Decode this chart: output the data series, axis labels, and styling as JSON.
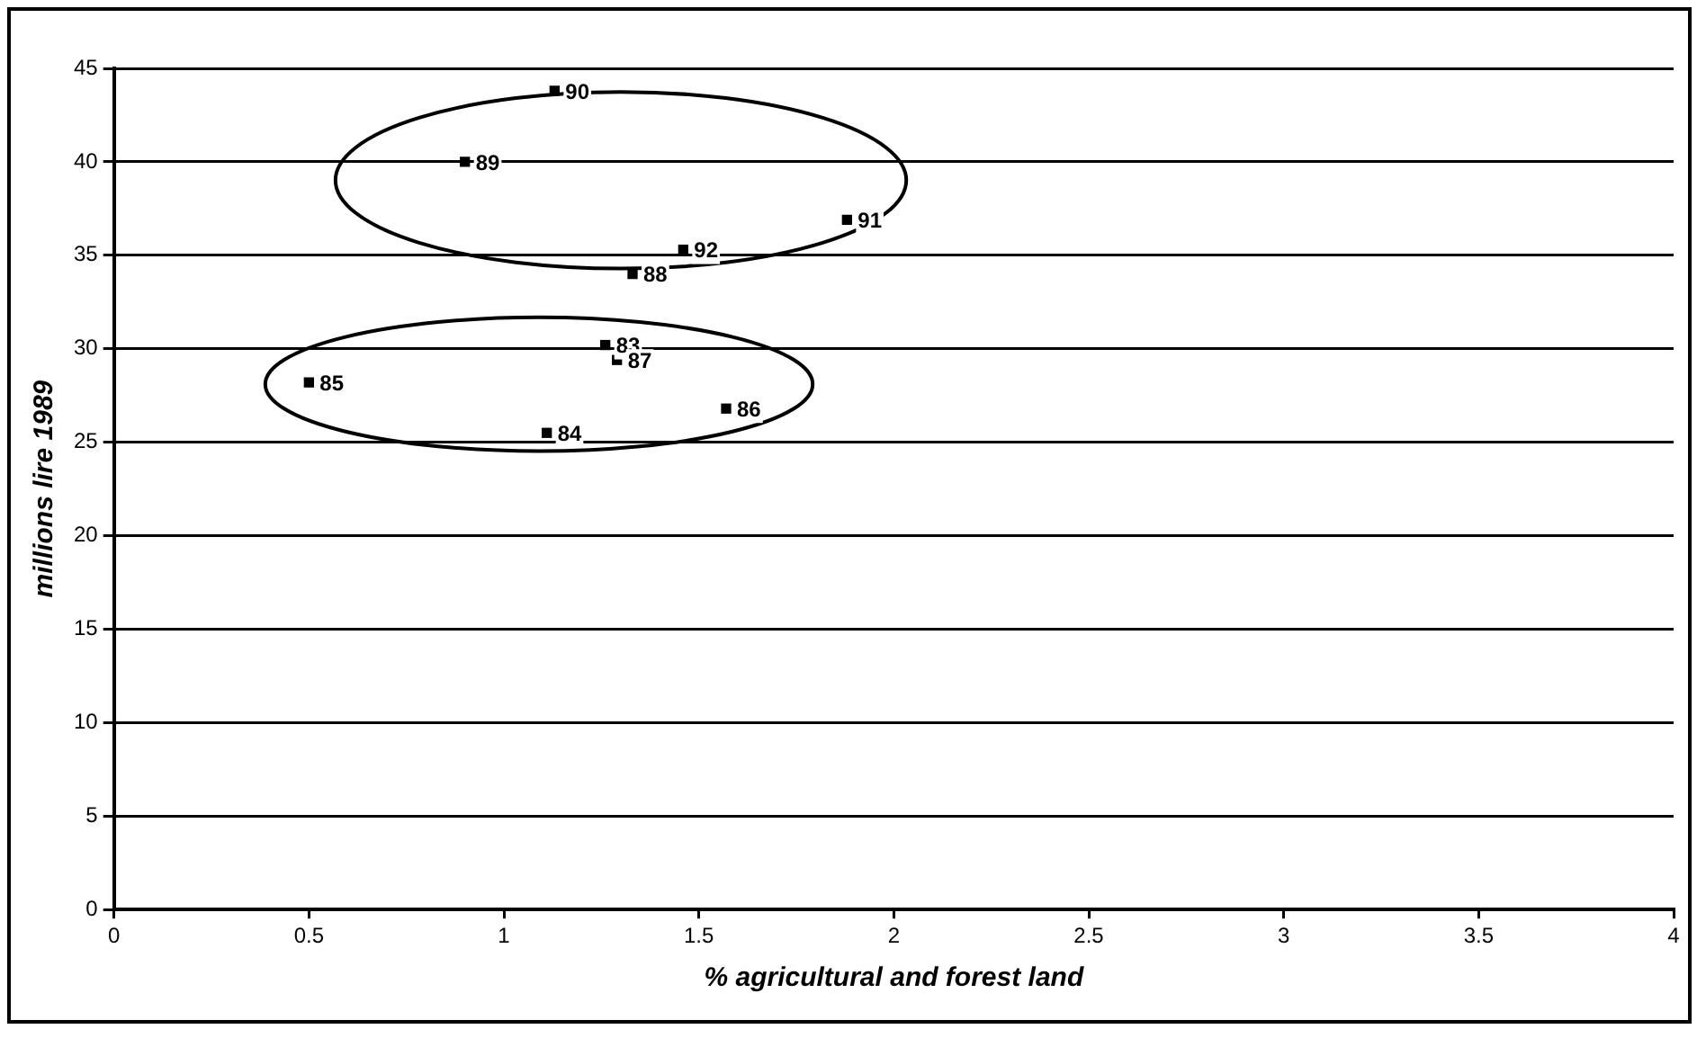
{
  "chart_data": {
    "type": "scatter",
    "xlabel": "% agricultural and forest land",
    "ylabel": "millions lire 1989",
    "x": [
      1.13,
      0.9,
      1.88,
      1.46,
      1.33,
      1.26,
      1.29,
      0.5,
      1.57,
      1.11
    ],
    "series": [
      {
        "color": "#000000",
        "values": [
          43.8,
          40.0,
          36.9,
          35.3,
          34.0,
          30.2,
          29.4,
          28.2,
          26.8,
          25.5
        ]
      }
    ],
    "annotations": [
      {
        "text": "90",
        "x": 1.13,
        "y": 43.8
      },
      {
        "text": "89",
        "x": 0.9,
        "y": 40.0
      },
      {
        "text": "91",
        "x": 1.88,
        "y": 36.9
      },
      {
        "text": "92",
        "x": 1.46,
        "y": 35.3
      },
      {
        "text": "88",
        "x": 1.33,
        "y": 34.0
      },
      {
        "text": "83",
        "x": 1.26,
        "y": 30.2
      },
      {
        "text": "87",
        "x": 1.29,
        "y": 29.4
      },
      {
        "text": "85",
        "x": 0.5,
        "y": 28.2
      },
      {
        "text": "86",
        "x": 1.57,
        "y": 26.8
      },
      {
        "text": "84",
        "x": 1.11,
        "y": 25.5
      }
    ],
    "xlim": [
      0,
      4
    ],
    "xticks": [
      0,
      0.5,
      1,
      1.5,
      2,
      2.5,
      3,
      3.5,
      4
    ],
    "ylim": [
      0,
      45
    ],
    "yticks": [
      0,
      5,
      10,
      15,
      20,
      25,
      30,
      35,
      40,
      45
    ],
    "grid": "y",
    "marker": "square",
    "legend": false
  }
}
